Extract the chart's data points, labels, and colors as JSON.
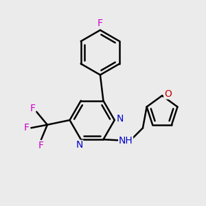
{
  "background_color": "#ebebeb",
  "atom_colors": {
    "C": "#000000",
    "N": "#0000cc",
    "F": "#cc00cc",
    "O": "#cc0000",
    "H": "#000000"
  },
  "bond_color": "#000000",
  "bond_width": 1.8,
  "font_size": 10,
  "xlim": [
    -2.5,
    3.5
  ],
  "ylim": [
    -3.0,
    3.5
  ]
}
